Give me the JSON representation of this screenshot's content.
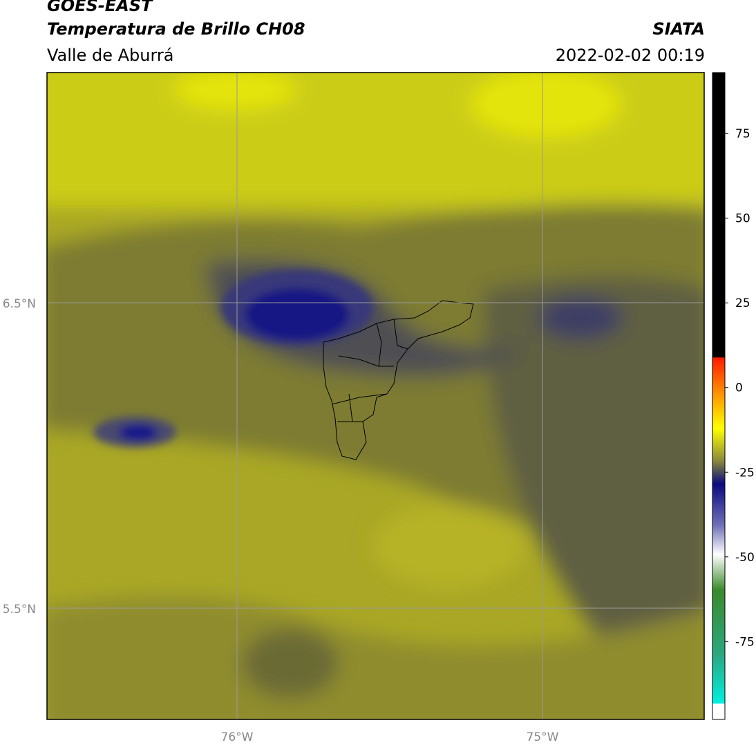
{
  "header": {
    "satellite": "GOES-EAST",
    "title": "Temperatura de Brillo CH08",
    "agency": "SIATA",
    "region": "Valle de Aburrá",
    "datetime": "2022-02-02 00:19"
  },
  "map": {
    "lat_labels": [
      "6.5°N",
      "5.5°N"
    ],
    "lon_labels": [
      "76°W",
      "75°W"
    ]
  },
  "colorbar": {
    "range": [
      -98,
      93
    ],
    "ticks": [
      75,
      50,
      25,
      0,
      -25,
      -50,
      -75
    ]
  }
}
